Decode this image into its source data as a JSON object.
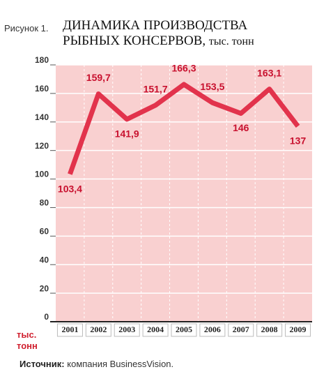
{
  "chart_data": {
    "type": "line",
    "figure_label": "Рисунок 1.",
    "title_lines": [
      "ДИНАМИКА ПРОИЗВОДСТВА",
      "РЫБНЫХ КОНСЕРВОВ,"
    ],
    "title_unit": "тыс. тонн",
    "categories": [
      "2001",
      "2002",
      "2003",
      "2004",
      "2005",
      "2006",
      "2007",
      "2008",
      "2009"
    ],
    "values": [
      103.4,
      159.7,
      141.9,
      151.7,
      166.3,
      153.5,
      146,
      163.1,
      137
    ],
    "value_labels": [
      "103,4",
      "159,7",
      "141,9",
      "151,7",
      "166,3",
      "153,5",
      "146",
      "163,1",
      "137"
    ],
    "color": "#e2334c",
    "ylim": [
      0,
      180
    ],
    "yticks": [
      0,
      20,
      40,
      60,
      80,
      100,
      120,
      140,
      160,
      180
    ],
    "grid": true,
    "y_unit": "тыс. тонн",
    "source_label": "Источник:",
    "source": "компания BusinessVision."
  }
}
